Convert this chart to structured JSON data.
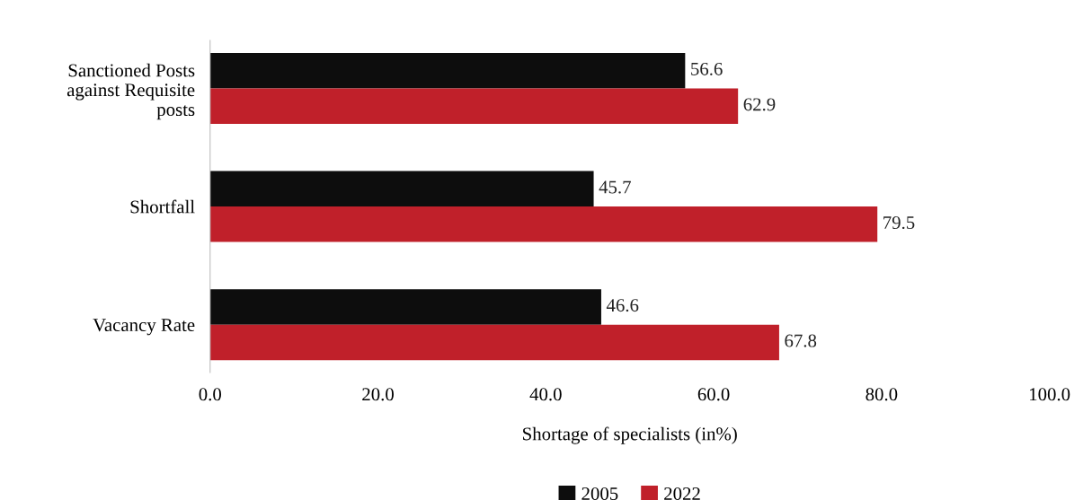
{
  "chart_data": {
    "type": "bar",
    "orientation": "horizontal",
    "categories": [
      "Sanctioned Posts\nagainst Requisite\nposts",
      "Shortfall",
      "Vacancy Rate"
    ],
    "series": [
      {
        "name": "2005",
        "color": "#0d0d0d",
        "values": [
          56.6,
          45.7,
          46.6
        ]
      },
      {
        "name": "2022",
        "color": "#c0202a",
        "values": [
          62.9,
          79.5,
          67.8
        ]
      }
    ],
    "xlabel": "Shortage of specialists (in%)",
    "xlim": [
      0,
      100
    ],
    "xticks": [
      {
        "value": 0,
        "label": "0.0"
      },
      {
        "value": 20,
        "label": "20.0"
      },
      {
        "value": 40,
        "label": "40.0"
      },
      {
        "value": 60,
        "label": "60.0"
      },
      {
        "value": 80,
        "label": "80.0"
      },
      {
        "value": 100,
        "label": "100.0"
      }
    ],
    "data_labels": true,
    "grid": false,
    "legend": "bottom"
  }
}
